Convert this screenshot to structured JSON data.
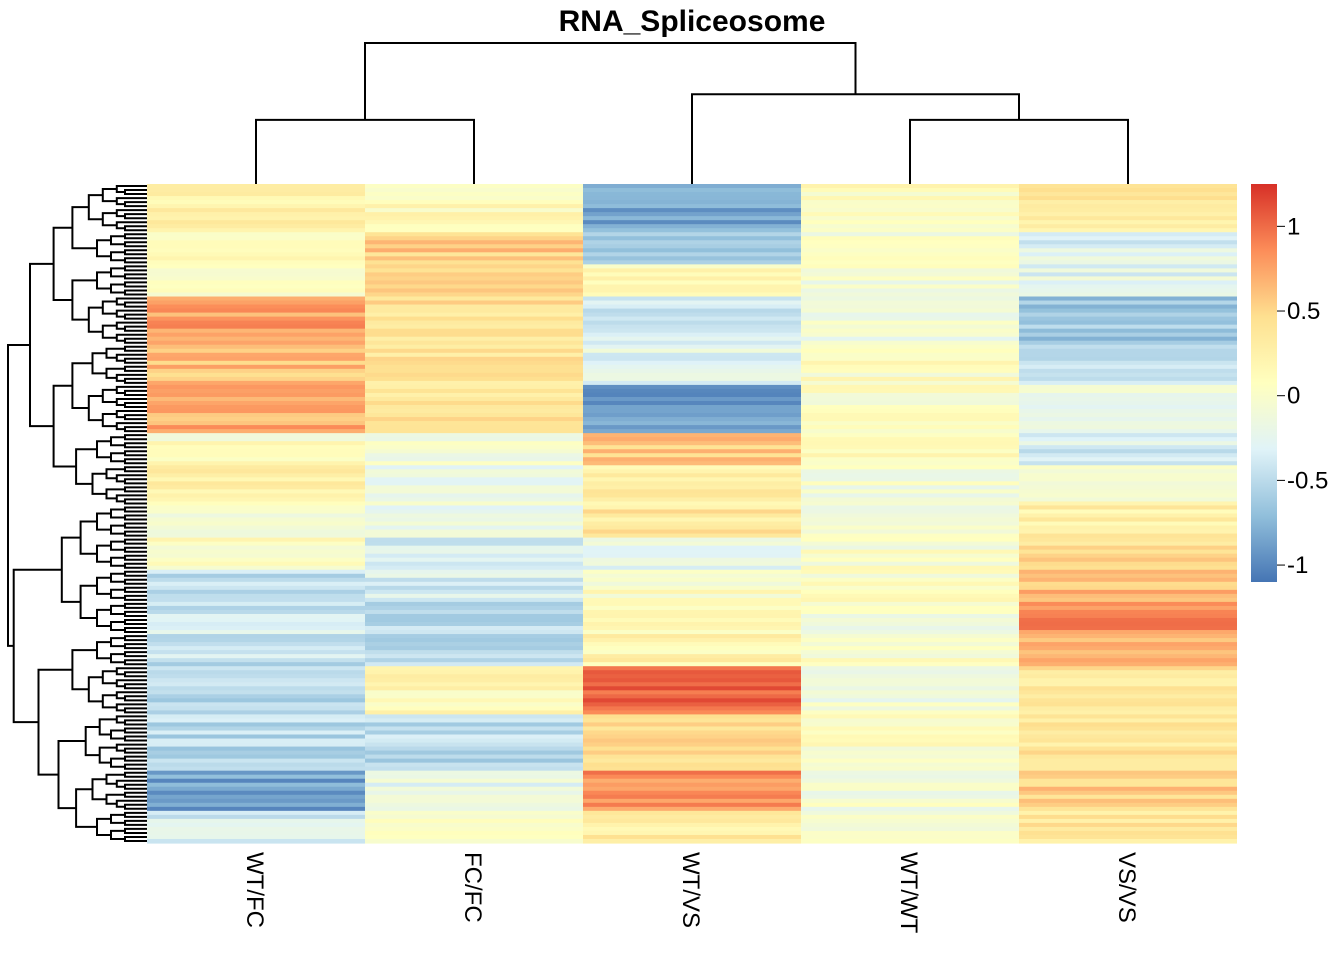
{
  "chart_data": {
    "type": "heatmap",
    "title": "RNA_Spliceosome",
    "columns": [
      "WT/FC",
      "FC/FC",
      "WT/VS",
      "WT/WT",
      "VS/VS"
    ],
    "colorbar": {
      "min": -1.1,
      "max": 1.25,
      "ticks": [
        1,
        0.5,
        0,
        -0.5,
        -1
      ],
      "tick_labels": [
        "1",
        "0.5",
        "0",
        "-0.5",
        "-1"
      ],
      "colors": [
        "#4575b4",
        "#91bfdb",
        "#e0f3f8",
        "#ffffbf",
        "#fee090",
        "#fc8d59",
        "#d73027"
      ]
    },
    "column_dendrogram": [
      {
        "merge": [
          "WT/FC",
          "FC/FC"
        ],
        "height": 1.0
      },
      {
        "merge": [
          "WT/WT",
          "VS/VS"
        ],
        "height": 1.0
      },
      {
        "merge": [
          "WT/VS",
          "WT/WT+VS/VS"
        ],
        "height": 1.4
      },
      {
        "merge": [
          "WT/FC+FC/FC",
          "WT/VS+WT/WT+VS/VS"
        ],
        "height": 2.2
      }
    ],
    "row_segments": [
      {
        "rows": 12,
        "values": [
          0.25,
          0.1,
          -0.85,
          0.05,
          0.35
        ]
      },
      {
        "rows": 8,
        "values": [
          0.1,
          0.55,
          -0.6,
          0.0,
          -0.3
        ]
      },
      {
        "rows": 8,
        "values": [
          0.05,
          0.45,
          0.15,
          -0.05,
          -0.25
        ]
      },
      {
        "rows": 12,
        "values": [
          0.75,
          0.4,
          -0.35,
          -0.1,
          -0.65
        ]
      },
      {
        "rows": 10,
        "values": [
          0.6,
          0.35,
          -0.25,
          0.05,
          -0.5
        ]
      },
      {
        "rows": 12,
        "values": [
          0.7,
          0.35,
          -0.9,
          0.05,
          -0.15
        ]
      },
      {
        "rows": 8,
        "values": [
          0.05,
          -0.05,
          0.55,
          0.05,
          -0.35
        ]
      },
      {
        "rows": 10,
        "values": [
          0.25,
          -0.15,
          0.3,
          -0.05,
          0.05
        ]
      },
      {
        "rows": 8,
        "values": [
          -0.1,
          -0.2,
          0.35,
          -0.1,
          0.25
        ]
      },
      {
        "rows": 8,
        "values": [
          0.05,
          -0.35,
          -0.2,
          0.0,
          0.45
        ]
      },
      {
        "rows": 8,
        "values": [
          -0.45,
          -0.35,
          0.05,
          0.05,
          0.65
        ]
      },
      {
        "rows": 8,
        "values": [
          -0.4,
          -0.5,
          0.1,
          -0.05,
          0.85
        ]
      },
      {
        "rows": 8,
        "values": [
          -0.45,
          -0.55,
          0.2,
          0.0,
          0.6
        ]
      },
      {
        "rows": 12,
        "values": [
          -0.55,
          0.15,
          1.0,
          -0.1,
          0.35
        ]
      },
      {
        "rows": 14,
        "values": [
          -0.5,
          -0.5,
          0.45,
          0.05,
          0.4
        ]
      },
      {
        "rows": 10,
        "values": [
          -0.85,
          -0.2,
          0.85,
          -0.05,
          0.55
        ]
      },
      {
        "rows": 8,
        "values": [
          -0.35,
          0.1,
          0.3,
          0.05,
          0.4
        ]
      }
    ]
  }
}
